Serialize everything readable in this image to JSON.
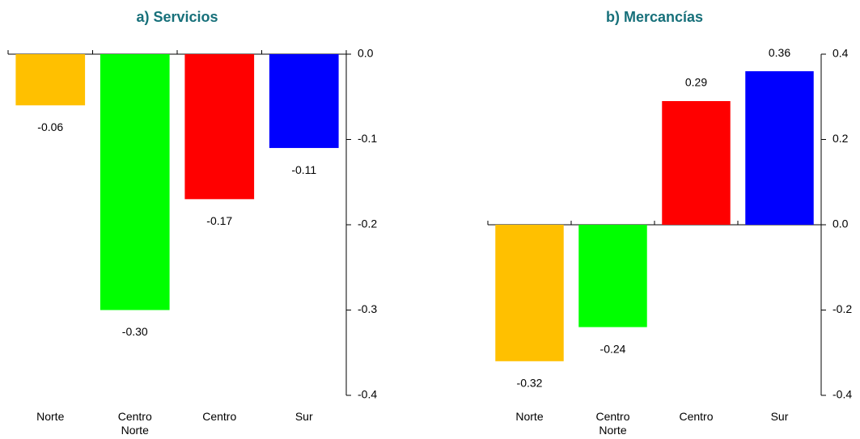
{
  "chart_data": [
    {
      "type": "bar",
      "title": "a) Servicios",
      "categories": [
        "Norte",
        "Centro Norte",
        "Centro",
        "Sur"
      ],
      "values": [
        -0.06,
        -0.3,
        -0.17,
        -0.11
      ],
      "value_labels": [
        "-0.06",
        "-0.30",
        "-0.17",
        "-0.11"
      ],
      "colors": [
        "#ffc000",
        "#00ff00",
        "#ff0000",
        "#0000ff"
      ],
      "ylim": [
        -0.4,
        0
      ],
      "yticks": [
        {
          "value": 0,
          "label": "0.0"
        },
        -0.1,
        -0.2,
        -0.3,
        -0.4
      ]
    },
    {
      "type": "bar",
      "title": "b) Mercancías",
      "categories": [
        "Norte",
        "Centro Norte",
        "Centro",
        "Sur"
      ],
      "values": [
        -0.32,
        -0.24,
        0.29,
        0.36
      ],
      "colors": [
        "#ffc000",
        "#00ff00",
        "#ff0000",
        "#0000ff"
      ],
      "ylim": [
        -0.4,
        0.4
      ],
      "yticks": [
        0.4,
        0.2,
        {
          "value": 0,
          "label": "0.0"
        },
        -0.2,
        -0.4
      ]
    }
  ]
}
